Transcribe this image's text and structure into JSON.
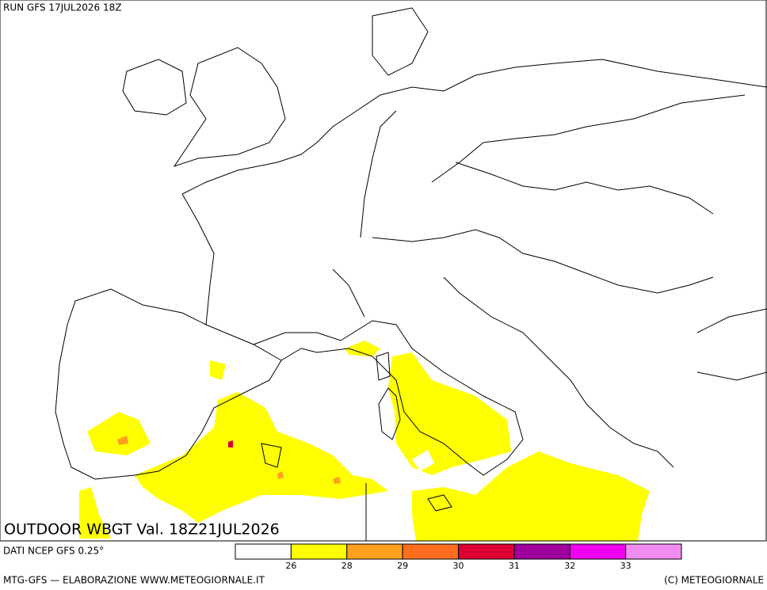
{
  "header": {
    "run": "RUN GFS 17JUL2026 18Z"
  },
  "map": {
    "title": "OUTDOOR WBGT Val. 18Z21JUL2026"
  },
  "legend": {
    "colors": [
      "#ffffff",
      "#ffff00",
      "#ffa01e",
      "#ff6e1e",
      "#dc0032",
      "#a0009b",
      "#f000f0",
      "#f08cf0"
    ],
    "ticks": [
      26,
      28,
      29,
      30,
      31,
      32,
      33
    ]
  },
  "footer": {
    "source": "DATI NCEP GFS 0.25°",
    "credit": "MTG-GFS — ELABORAZIONE WWW.METEOGIORNALE.IT",
    "copyright": "(C) METEOGIORNALE"
  }
}
